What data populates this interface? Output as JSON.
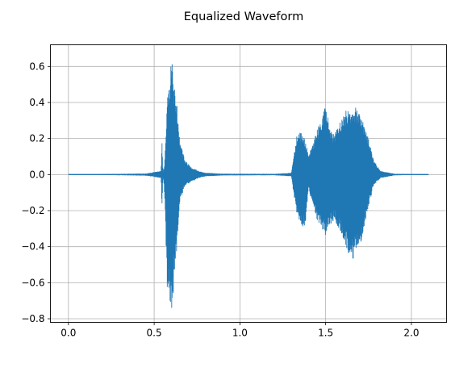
{
  "chart_data": {
    "type": "line",
    "title": "Equalized Waveform",
    "xlabel": "",
    "ylabel": "",
    "xlim": [
      -0.105,
      2.205
    ],
    "ylim": [
      -0.82,
      0.72
    ],
    "xticks": [
      0.0,
      0.5,
      1.0,
      1.5,
      2.0
    ],
    "xtick_labels": [
      "0.0",
      "0.5",
      "1.0",
      "1.5",
      "2.0"
    ],
    "yticks": [
      -0.8,
      -0.6,
      -0.4,
      -0.2,
      0.0,
      0.2,
      0.4,
      0.6
    ],
    "ytick_labels": [
      "−0.8",
      "−0.6",
      "−0.4",
      "−0.2",
      "0.0",
      "0.2",
      "0.4",
      "0.6"
    ],
    "grid": true,
    "series": [
      {
        "color": "#1f77b4",
        "x_range": [
          0.0,
          2.1
        ],
        "envelope": {
          "x": [
            0.0,
            0.45,
            0.54,
            0.545,
            0.55,
            0.555,
            0.56,
            0.575,
            0.595,
            0.605,
            0.615,
            0.63,
            0.65,
            0.68,
            0.72,
            0.76,
            0.8,
            0.9,
            1.2,
            1.3,
            1.32,
            1.33,
            1.35,
            1.38,
            1.4,
            1.45,
            1.5,
            1.52,
            1.55,
            1.6,
            1.63,
            1.66,
            1.7,
            1.75,
            1.78,
            1.82,
            1.9,
            2.0,
            2.1
          ],
          "upper": [
            0.0,
            0.006,
            0.02,
            0.2,
            0.05,
            0.02,
            0.05,
            0.4,
            0.6,
            0.66,
            0.5,
            0.42,
            0.2,
            0.08,
            0.04,
            0.02,
            0.01,
            0.005,
            0.004,
            0.01,
            0.15,
            0.22,
            0.25,
            0.2,
            0.1,
            0.25,
            0.39,
            0.28,
            0.22,
            0.33,
            0.37,
            0.38,
            0.36,
            0.2,
            0.08,
            0.02,
            0.005,
            0.002,
            0.0
          ],
          "lower": [
            0.0,
            -0.006,
            -0.02,
            -0.2,
            -0.05,
            -0.02,
            -0.1,
            -0.62,
            -0.72,
            -0.77,
            -0.6,
            -0.45,
            -0.15,
            -0.06,
            -0.04,
            -0.02,
            -0.01,
            -0.005,
            -0.004,
            -0.01,
            -0.15,
            -0.22,
            -0.27,
            -0.3,
            -0.08,
            -0.25,
            -0.34,
            -0.3,
            -0.25,
            -0.36,
            -0.44,
            -0.47,
            -0.4,
            -0.18,
            -0.06,
            -0.02,
            -0.005,
            -0.002,
            0.0
          ]
        }
      }
    ]
  }
}
